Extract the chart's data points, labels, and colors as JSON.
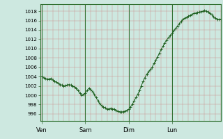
{
  "bg_color": "#cde8e0",
  "plot_bg_color": "#cde8e0",
  "line_color": "#1a5c1a",
  "marker_color": "#1a5c1a",
  "ylim": [
    994.5,
    1019.5
  ],
  "yticks": [
    996,
    998,
    1000,
    1002,
    1004,
    1006,
    1008,
    1010,
    1012,
    1014,
    1016,
    1018
  ],
  "day_labels": [
    "Ven",
    "Sam",
    "Dim",
    "Lun"
  ],
  "day_positions": [
    0,
    24,
    48,
    72
  ],
  "total_hours": 100,
  "pressure_data": [
    1004.0,
    1003.8,
    1003.6,
    1003.4,
    1003.5,
    1003.6,
    1003.3,
    1003.0,
    1002.8,
    1002.5,
    1002.3,
    1002.2,
    1002.0,
    1002.1,
    1002.2,
    1002.3,
    1002.2,
    1002.0,
    1001.8,
    1001.5,
    1001.0,
    1000.5,
    1000.0,
    1000.2,
    1000.5,
    1001.0,
    1001.5,
    1001.2,
    1000.8,
    1000.2,
    999.5,
    998.8,
    998.2,
    997.8,
    997.5,
    997.3,
    997.0,
    997.1,
    997.2,
    997.1,
    997.0,
    996.8,
    996.6,
    996.5,
    996.4,
    996.5,
    996.6,
    996.8,
    997.0,
    997.5,
    998.0,
    998.8,
    999.5,
    1000.2,
    1001.0,
    1002.0,
    1003.0,
    1003.8,
    1004.5,
    1005.0,
    1005.5,
    1006.0,
    1006.8,
    1007.5,
    1008.2,
    1009.0,
    1009.8,
    1010.5,
    1011.2,
    1011.8,
    1012.3,
    1012.8,
    1013.2,
    1013.8,
    1014.3,
    1014.8,
    1015.3,
    1015.8,
    1016.2,
    1016.5,
    1016.7,
    1016.9,
    1017.1,
    1017.3,
    1017.5,
    1017.6,
    1017.7,
    1017.8,
    1017.9,
    1018.0,
    1018.1,
    1018.0,
    1017.8,
    1017.5,
    1017.2,
    1016.8,
    1016.5,
    1016.3,
    1016.2,
    1016.3
  ]
}
